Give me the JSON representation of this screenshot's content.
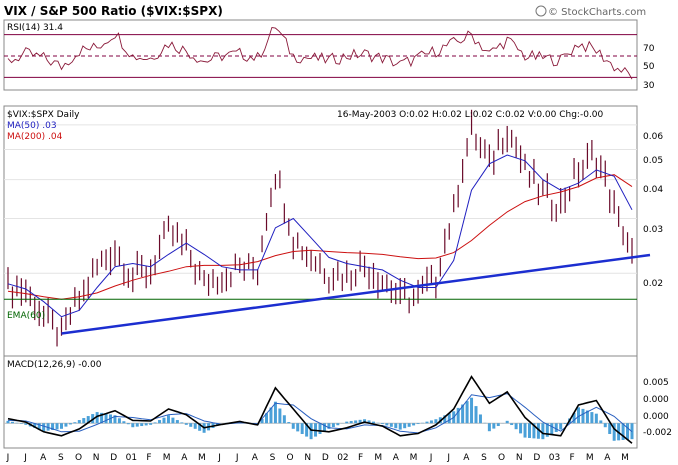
{
  "header": {
    "title": "VIX / S&P 500 Ratio ($VIX:$SPX)",
    "source": "© StockCharts.com"
  },
  "rsi_panel": {
    "label": "RSI(14) 31.4",
    "ticks": [
      "70",
      "50",
      "30"
    ]
  },
  "price_panel": {
    "symbol_label": "$VIX:$SPX Daily",
    "ma50_label": "MA(50) .03",
    "ma200_label": "MA(200) .04",
    "quote": "16-May-2003 O:0.02 H:0.02 L:0.02 C:0.02 V:0.00 Chg:-0.00",
    "ema_label": "EMA(60)",
    "ticks": [
      "0.06",
      "0.05",
      "0.04",
      "0.03",
      "0.02"
    ]
  },
  "macd_panel": {
    "label": "MACD(12,26,9) -0.00",
    "ticks": [
      "0.005",
      "0.000",
      "0.000",
      "-0.002"
    ]
  },
  "x_axis": {
    "labels": [
      "J",
      "J",
      "A",
      "S",
      "O",
      "N",
      "D",
      "01",
      "F",
      "M",
      "A",
      "M",
      "J",
      "J",
      "A",
      "S",
      "O",
      "N",
      "D",
      "02",
      "F",
      "M",
      "A",
      "M",
      "J",
      "J",
      "A",
      "S",
      "O",
      "N",
      "D",
      "03",
      "F",
      "M",
      "A",
      "M"
    ]
  },
  "colors": {
    "price": "#6a0a2a",
    "ma50": "#2020c0",
    "ma200": "#cc1010",
    "trendline": "#1c2ed0",
    "ema": "#006400",
    "rsi": "#8a1a3a",
    "rsi_bands": "#800040",
    "macd": "#000000",
    "signal": "#2a60c0",
    "histogram": "#4aa0d8"
  },
  "chart_data": {
    "type": "line",
    "title": "VIX / S&P 500 Ratio ($VIX:$SPX)",
    "scale": "log",
    "x": [
      "2000-06",
      "2000-07",
      "2000-08",
      "2000-09",
      "2000-10",
      "2000-11",
      "2000-12",
      "2001-01",
      "2001-02",
      "2001-03",
      "2001-04",
      "2001-05",
      "2001-06",
      "2001-07",
      "2001-08",
      "2001-09",
      "2001-10",
      "2001-11",
      "2001-12",
      "2002-01",
      "2002-02",
      "2002-03",
      "2002-04",
      "2002-05",
      "2002-06",
      "2002-07",
      "2002-08",
      "2002-09",
      "2002-10",
      "2002-11",
      "2002-12",
      "2003-01",
      "2003-02",
      "2003-03",
      "2003-04",
      "2003-05"
    ],
    "ylim": [
      0.011,
      0.068
    ],
    "series": [
      {
        "name": "$VIX:$SPX Daily",
        "values": [
          0.0185,
          0.0175,
          0.0145,
          0.0125,
          0.0165,
          0.021,
          0.024,
          0.0195,
          0.0205,
          0.027,
          0.024,
          0.0185,
          0.0195,
          0.021,
          0.0205,
          0.042,
          0.026,
          0.0225,
          0.02,
          0.02,
          0.0215,
          0.019,
          0.0165,
          0.017,
          0.0195,
          0.031,
          0.058,
          0.045,
          0.058,
          0.043,
          0.036,
          0.033,
          0.043,
          0.048,
          0.032,
          0.0225
        ]
      },
      {
        "name": "MA(50) .03",
        "values": [
          0.0185,
          0.0178,
          0.0162,
          0.0145,
          0.0152,
          0.018,
          0.021,
          0.0215,
          0.021,
          0.023,
          0.025,
          0.023,
          0.021,
          0.0205,
          0.0205,
          0.028,
          0.03,
          0.026,
          0.0225,
          0.0215,
          0.021,
          0.0205,
          0.019,
          0.018,
          0.018,
          0.022,
          0.037,
          0.045,
          0.048,
          0.046,
          0.04,
          0.037,
          0.039,
          0.043,
          0.041,
          0.032
        ]
      },
      {
        "name": "MA(200) .04",
        "values": [
          0.0175,
          0.0172,
          0.0168,
          0.0165,
          0.0168,
          0.0173,
          0.0182,
          0.019,
          0.0197,
          0.0203,
          0.021,
          0.0212,
          0.0212,
          0.0213,
          0.0218,
          0.0228,
          0.0235,
          0.0237,
          0.0235,
          0.0233,
          0.0232,
          0.023,
          0.0226,
          0.0223,
          0.0224,
          0.0233,
          0.0255,
          0.0285,
          0.0315,
          0.034,
          0.0355,
          0.0365,
          0.038,
          0.0405,
          0.0415,
          0.038
        ]
      }
    ],
    "ema": 0.0165,
    "trendline": {
      "from": [
        "2000-09",
        0.0128
      ],
      "to": [
        "2003-05",
        0.0225
      ]
    },
    "rsi": {
      "ylim": [
        20,
        80
      ],
      "bands": [
        70,
        50,
        30
      ],
      "values": [
        45,
        52,
        48,
        40,
        55,
        58,
        72,
        50,
        48,
        62,
        55,
        45,
        50,
        52,
        48,
        78,
        50,
        48,
        46,
        50,
        52,
        48,
        42,
        48,
        55,
        62,
        70,
        52,
        65,
        50,
        48,
        46,
        62,
        55,
        40,
        31
      ]
    },
    "macd": {
      "values": [
        0.0008,
        0.0002,
        -0.0015,
        -0.0022,
        -0.001,
        0.0012,
        0.0022,
        0.0005,
        0.0004,
        0.0025,
        0.0015,
        -0.0008,
        -0.0002,
        0.0003,
        -0.0003,
        0.0062,
        0.0025,
        -0.0012,
        -0.0015,
        -0.0008,
        0.0002,
        -0.0005,
        -0.0022,
        -0.0018,
        -0.0003,
        0.0025,
        0.0082,
        0.0035,
        0.0055,
        0.001,
        -0.0018,
        -0.0022,
        0.0032,
        0.004,
        -0.001,
        -0.0035
      ],
      "signal": [
        0.0005,
        0.0004,
        -0.0005,
        -0.0015,
        -0.0014,
        -0.0002,
        0.0012,
        0.001,
        0.0006,
        0.0015,
        0.0017,
        0.0004,
        -0.0002,
        0.0001,
        -0.0001,
        0.0035,
        0.0032,
        0.0008,
        -0.0008,
        -0.001,
        -0.0003,
        -0.0004,
        -0.0014,
        -0.0017,
        -0.0008,
        0.001,
        0.005,
        0.0045,
        0.0052,
        0.0028,
        0.0002,
        -0.0014,
        0.0012,
        0.0028,
        0.0012,
        -0.0015
      ],
      "ylim": [
        -0.004,
        0.009
      ]
    }
  }
}
